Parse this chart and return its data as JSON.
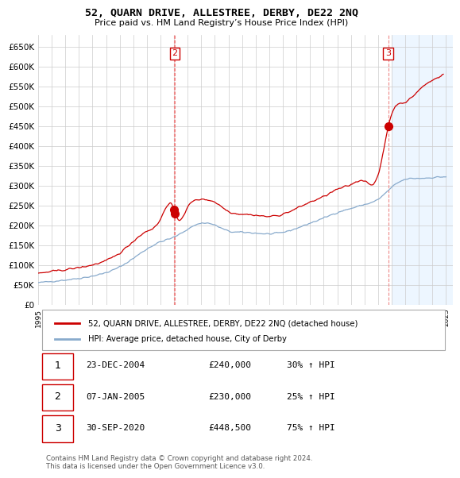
{
  "title": "52, QUARN DRIVE, ALLESTREE, DERBY, DE22 2NQ",
  "subtitle": "Price paid vs. HM Land Registry’s House Price Index (HPI)",
  "legend_label_red": "52, QUARN DRIVE, ALLESTREE, DERBY, DE22 2NQ (detached house)",
  "legend_label_blue": "HPI: Average price, detached house, City of Derby",
  "footer": "Contains HM Land Registry data © Crown copyright and database right 2024.\nThis data is licensed under the Open Government Licence v3.0.",
  "transactions": [
    {
      "num": 1,
      "date": "23-DEC-2004",
      "price": "£240,000",
      "hpi": "30% ↑ HPI"
    },
    {
      "num": 2,
      "date": "07-JAN-2005",
      "price": "£230,000",
      "hpi": "25% ↑ HPI"
    },
    {
      "num": 3,
      "date": "30-SEP-2020",
      "price": "£448,500",
      "hpi": "75% ↑ HPI"
    }
  ],
  "sale1_year": 2004.97,
  "sale2_year": 2005.05,
  "sale3_year": 2020.75,
  "sale1_price": 240000,
  "sale2_price": 230000,
  "sale3_price": 448500,
  "ylim": [
    0,
    680000
  ],
  "xlim_left": 1995.0,
  "xlim_right": 2025.5,
  "yticks": [
    0,
    50000,
    100000,
    150000,
    200000,
    250000,
    300000,
    350000,
    400000,
    450000,
    500000,
    550000,
    600000,
    650000
  ],
  "background_color": "#ffffff",
  "grid_color": "#cccccc",
  "red_color": "#cc0000",
  "blue_color": "#88aacc",
  "vline_color": "#ee8888",
  "shade_color": "#ddeeff",
  "figwidth": 6.0,
  "figheight": 5.9
}
